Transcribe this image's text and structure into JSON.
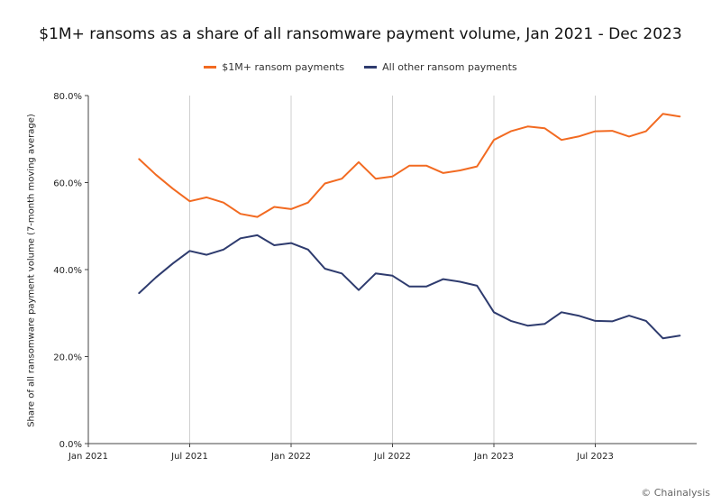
{
  "chart_data": {
    "type": "line",
    "title": "$1M+ ransoms as a share of all ransomware payment volume, Jan 2021 - Dec 2023",
    "ylabel": "Share of all ransomware payment volume (7-month moving average)",
    "xlabel": "",
    "x_range": [
      "2021-01",
      "2024-01"
    ],
    "ylim": [
      0,
      80
    ],
    "y_ticks": [
      "0.0%",
      "20.0%",
      "40.0%",
      "60.0%",
      "80.0%"
    ],
    "x_ticks": [
      {
        "label": "Jan 2021",
        "at": "2021-01"
      },
      {
        "label": "Jul 2021",
        "at": "2021-07"
      },
      {
        "label": "Jan 2022",
        "at": "2022-01"
      },
      {
        "label": "Jul 2022",
        "at": "2022-07"
      },
      {
        "label": "Jan 2023",
        "at": "2023-01"
      },
      {
        "label": "Jul 2023",
        "at": "2023-07"
      }
    ],
    "grid": "vertical",
    "legend_position": "top-center",
    "x": [
      "2021-04",
      "2021-05",
      "2021-06",
      "2021-07",
      "2021-08",
      "2021-09",
      "2021-10",
      "2021-11",
      "2021-12",
      "2022-01",
      "2022-02",
      "2022-03",
      "2022-04",
      "2022-05",
      "2022-06",
      "2022-07",
      "2022-08",
      "2022-09",
      "2022-10",
      "2022-11",
      "2022-12",
      "2023-01",
      "2023-02",
      "2023-03",
      "2023-04",
      "2023-05",
      "2023-06",
      "2023-07",
      "2023-08",
      "2023-09",
      "2023-10",
      "2023-11",
      "2023-12"
    ],
    "series": [
      {
        "name": "$1M+ ransom payments",
        "color": "#f26a21",
        "values": [
          65.4,
          61.8,
          58.6,
          55.7,
          56.6,
          55.4,
          52.8,
          52.1,
          54.4,
          53.9,
          55.4,
          59.8,
          60.9,
          64.7,
          60.9,
          61.4,
          63.9,
          63.9,
          62.2,
          62.8,
          63.7,
          69.8,
          71.8,
          72.9,
          72.5,
          69.8,
          70.6,
          71.8,
          71.9,
          70.6,
          71.8,
          75.8,
          75.2
        ]
      },
      {
        "name": "All other ransom payments",
        "color": "#2e3b6e",
        "values": [
          34.6,
          38.2,
          41.4,
          44.3,
          43.4,
          44.6,
          47.2,
          47.9,
          45.6,
          46.1,
          44.6,
          40.2,
          39.1,
          35.3,
          39.1,
          38.6,
          36.1,
          36.1,
          37.8,
          37.2,
          36.3,
          30.2,
          28.2,
          27.1,
          27.5,
          30.2,
          29.4,
          28.2,
          28.1,
          29.4,
          28.2,
          24.2,
          24.8
        ]
      }
    ]
  },
  "credit": "© Chainalysis"
}
